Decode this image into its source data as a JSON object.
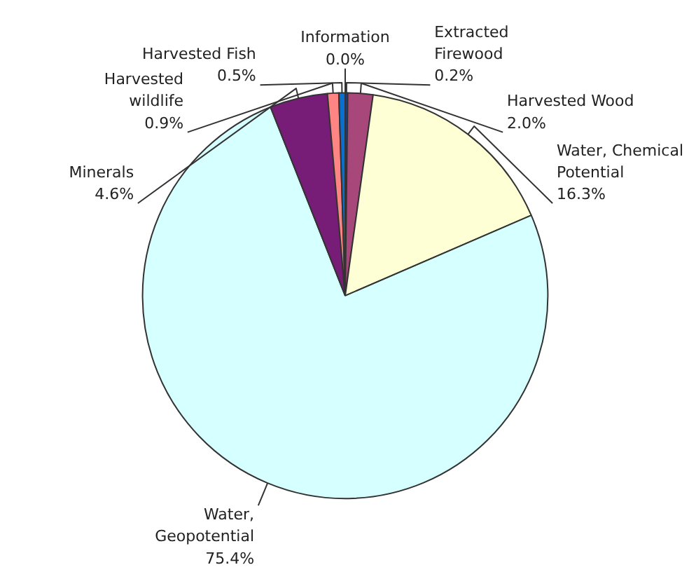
{
  "chart_data": {
    "type": "pie",
    "categories": [
      "Information",
      "Extracted Firewood",
      "Harvested Wood",
      "Water, Chemical Potential",
      "Water, Geopotential",
      "Minerals",
      "Harvested wildlife",
      "Harvested Fish"
    ],
    "values": [
      0.0,
      0.2,
      2.0,
      16.3,
      75.4,
      4.6,
      0.9,
      0.5
    ],
    "value_labels": [
      "0.0%",
      "0.2%",
      "2.0%",
      "16.3%",
      "75.4%",
      "4.6%",
      "0.9%",
      "0.5%"
    ],
    "colors": [
      "#1a2a6c",
      "#1f3f80",
      "#a8487a",
      "#ffffd6",
      "#d6ffff",
      "#771c77",
      "#ff8585",
      "#0a70d0"
    ],
    "legend": false
  }
}
